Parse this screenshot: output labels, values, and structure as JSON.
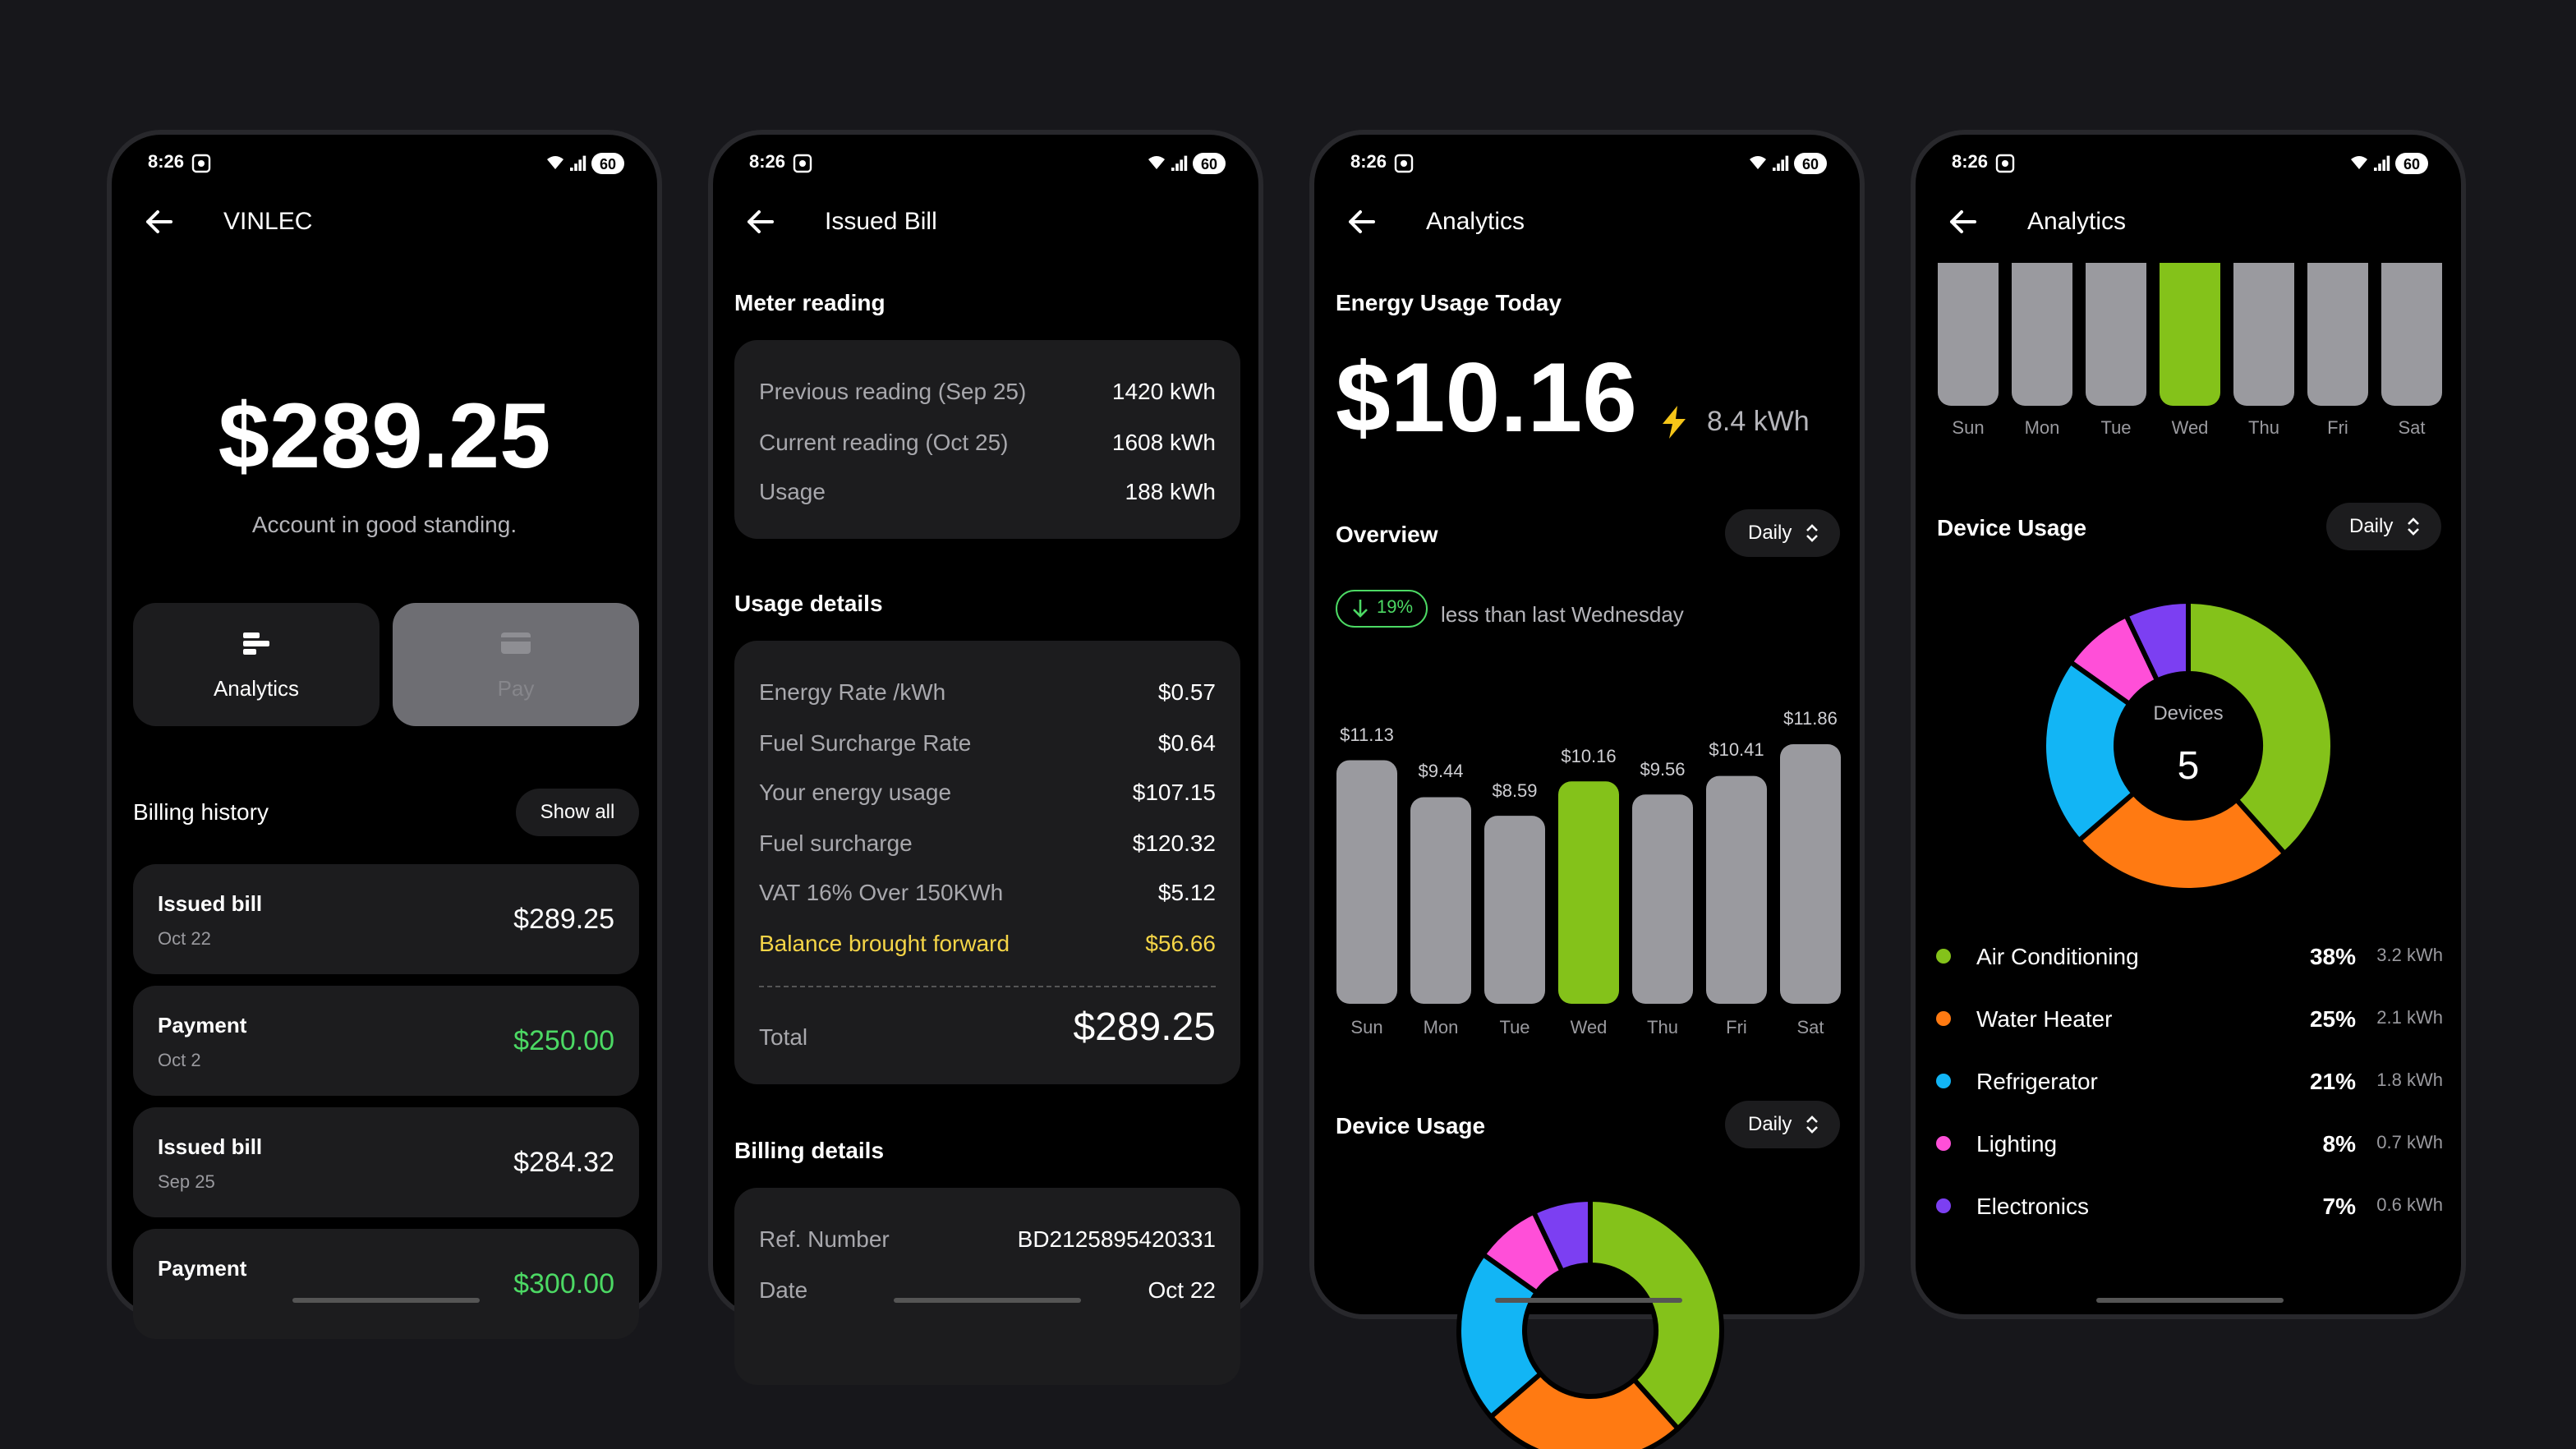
{
  "screens": [
    {
      "status": {
        "time": "8:26",
        "battery": "60"
      },
      "title": "VINLEC",
      "balance": "$289.25",
      "standing": "Account in good standing.",
      "actions": [
        "Analytics",
        "Pay"
      ],
      "billing_history": {
        "title": "Billing history",
        "action": "Show all",
        "items": [
          {
            "title": "Issued bill",
            "date": "Oct 22",
            "amount": "$289.25",
            "color": "#ffffff"
          },
          {
            "title": "Payment",
            "date": "Oct 2",
            "amount": "$250.00",
            "color": "#4cd964"
          },
          {
            "title": "Issued bill",
            "date": "Sep 25",
            "amount": "$284.32",
            "color": "#ffffff"
          },
          {
            "title": "Payment",
            "amount": "$300.00",
            "color": "#4cd964"
          }
        ]
      }
    },
    {
      "status": {
        "time": "8:26",
        "battery": "60"
      },
      "title": "Issued Bill",
      "meter_reading": {
        "title": "Meter reading",
        "rows": [
          {
            "label": "Previous reading (Sep 25)",
            "value": "1420 kWh"
          },
          {
            "label": "Current reading (Oct 25)",
            "value": "1608 kWh"
          },
          {
            "label": "Usage",
            "value": "188 kWh"
          }
        ]
      },
      "usage_details": {
        "title": "Usage details",
        "rows": [
          {
            "label": "Energy Rate /kWh",
            "value": "$0.57"
          },
          {
            "label": "Fuel Surcharge Rate",
            "value": "$0.64"
          },
          {
            "label": "Your energy usage",
            "value": "$107.15"
          },
          {
            "label": "Fuel surcharge",
            "value": "$120.32"
          },
          {
            "label": "VAT 16% Over 150KWh",
            "value": "$5.12"
          },
          {
            "label": "Balance brought forward",
            "value": "$56.66",
            "color": "#f5d547"
          }
        ],
        "total": {
          "label": "Total",
          "value": "$289.25"
        }
      },
      "billing_details": {
        "title": "Billing details",
        "rows": [
          {
            "label": "Ref. Number",
            "value": "BD2125895420331"
          },
          {
            "label": "Date",
            "value": "Oct 22"
          }
        ]
      }
    },
    {
      "status": {
        "time": "8:26",
        "battery": "60"
      },
      "title": "Analytics",
      "energy": {
        "title": "Energy Usage Today",
        "amount": "$10.16",
        "usage": "8.4 kWh"
      },
      "overview": {
        "title": "Overview",
        "period": "Daily",
        "change": {
          "value": "19%",
          "text": "less than last Wednesday"
        },
        "chart": {
          "type": "bar",
          "categories": [
            "Sun",
            "Mon",
            "Tue",
            "Wed",
            "Thu",
            "Fri",
            "Sat"
          ],
          "values": [
            11.13,
            9.44,
            8.59,
            10.16,
            9.56,
            10.41,
            11.86
          ],
          "value_labels": [
            "$11.13",
            "$9.44",
            "$8.59",
            "$10.16",
            "$9.56",
            "$10.41",
            "$11.86"
          ],
          "colors": [
            "#9a9a9f",
            "#9a9a9f",
            "#9a9a9f",
            "#84c21a",
            "#9a9a9f",
            "#9a9a9f",
            "#9a9a9f"
          ]
        }
      },
      "device_usage": {
        "title": "Device Usage",
        "period": "Daily"
      }
    },
    {
      "status": {
        "time": "8:26",
        "battery": "60"
      },
      "title": "Analytics",
      "week": {
        "categories": [
          "Sun",
          "Mon",
          "Tue",
          "Wed",
          "Thu",
          "Fri",
          "Sat"
        ]
      },
      "device_usage": {
        "title": "Device Usage",
        "period": "Daily",
        "center_label": "Devices",
        "center_value": 5,
        "chart": {
          "type": "pie",
          "categories": [
            "Air Conditioning",
            "Water Heater",
            "Refrigerator",
            "Lighting",
            "Electronics"
          ],
          "values": [
            38,
            25,
            21,
            8,
            7
          ],
          "value_labels": [
            "38%",
            "25%",
            "21%",
            "8%",
            "7%"
          ],
          "kwh": [
            3.2,
            2.1,
            1.8,
            0.7,
            0.6
          ],
          "kwh_labels": [
            "3.2 kWh",
            "2.1 kWh",
            "1.8 kWh",
            "0.7 kWh",
            "0.6 kWh"
          ],
          "colors": [
            "#84c21a",
            "#ff7a12",
            "#12b5f5",
            "#ff4fd8",
            "#7c3ff2"
          ]
        }
      }
    }
  ]
}
